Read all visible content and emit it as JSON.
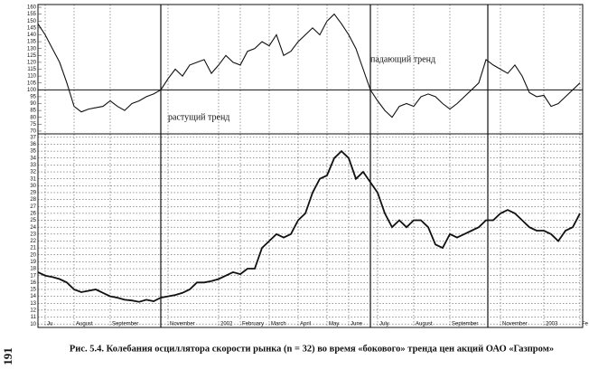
{
  "chart_data": [
    {
      "type": "line",
      "color": "#111111",
      "values": [
        148,
        140,
        130,
        120,
        105,
        88,
        84,
        86,
        87,
        88,
        92,
        88,
        85,
        90,
        92,
        95,
        97,
        100,
        108,
        115,
        110,
        118,
        120,
        122,
        112,
        118,
        125,
        120,
        118,
        128,
        130,
        135,
        132,
        140,
        125,
        128,
        135,
        140,
        145,
        140,
        150,
        155,
        148,
        140,
        130,
        115,
        100,
        92,
        85,
        80,
        88,
        90,
        88,
        95,
        97,
        95,
        90,
        86,
        90,
        95,
        100,
        105,
        122,
        118,
        115,
        112,
        118,
        110,
        98,
        95,
        96,
        88,
        90,
        95,
        100,
        105
      ],
      "ylim": [
        68,
        162
      ],
      "yticks": [
        70,
        75,
        80,
        85,
        90,
        95,
        100,
        105,
        110,
        115,
        120,
        125,
        130,
        135,
        140,
        145,
        150,
        155,
        160
      ],
      "reference_line": 100,
      "annotations": [
        "падающий тренд",
        "растущий тренд"
      ]
    },
    {
      "type": "line",
      "color": "#111111",
      "grid": true,
      "categories": [
        null,
        "Ju",
        null,
        null,
        null,
        "August",
        null,
        null,
        null,
        null,
        "September",
        null,
        null,
        null,
        null,
        null,
        null,
        null,
        "November",
        null,
        null,
        null,
        null,
        null,
        null,
        "2002",
        null,
        null,
        "February",
        null,
        null,
        null,
        "March",
        null,
        null,
        null,
        "April",
        null,
        null,
        null,
        "May",
        null,
        null,
        "June",
        null,
        null,
        null,
        "July",
        null,
        null,
        null,
        null,
        "August",
        null,
        null,
        null,
        null,
        "September",
        null,
        null,
        null,
        null,
        null,
        null,
        "November",
        null,
        null,
        null,
        null,
        null,
        "2003",
        null,
        null,
        null,
        null,
        "Fe"
      ],
      "values": [
        17.5,
        17,
        16.8,
        16.5,
        16,
        15,
        14.6,
        14.8,
        15,
        14.5,
        14,
        13.8,
        13.5,
        13.4,
        13.2,
        13.5,
        13.3,
        13.8,
        14,
        14.2,
        14.5,
        15,
        16,
        16,
        16.2,
        16.5,
        17,
        17.5,
        17.2,
        18,
        18,
        21,
        22,
        23,
        22.5,
        23,
        25,
        26,
        29,
        31,
        31.5,
        34,
        35,
        34,
        31,
        32,
        30.5,
        29,
        26,
        24,
        25,
        24,
        25,
        25,
        24,
        21.5,
        21,
        23,
        22.5,
        23,
        23.5,
        24,
        25,
        25,
        26,
        26.5,
        26,
        25,
        24,
        23.5,
        23.5,
        23,
        22,
        23.5,
        24,
        26
      ],
      "ylim": [
        9.5,
        37.5
      ],
      "yticks": [
        10,
        11,
        12,
        13,
        14,
        15,
        16,
        17,
        18,
        19,
        20,
        21,
        22,
        23,
        24,
        25,
        26,
        27,
        28,
        29,
        30,
        31,
        32,
        33,
        34,
        35,
        36,
        37
      ]
    }
  ],
  "caption": "Рис. 5.4. Колебания осциллятора скорости рынка (n = 32) во время «бокового» тренда цен акций ОАО «Газпром»",
  "page_number": "191"
}
